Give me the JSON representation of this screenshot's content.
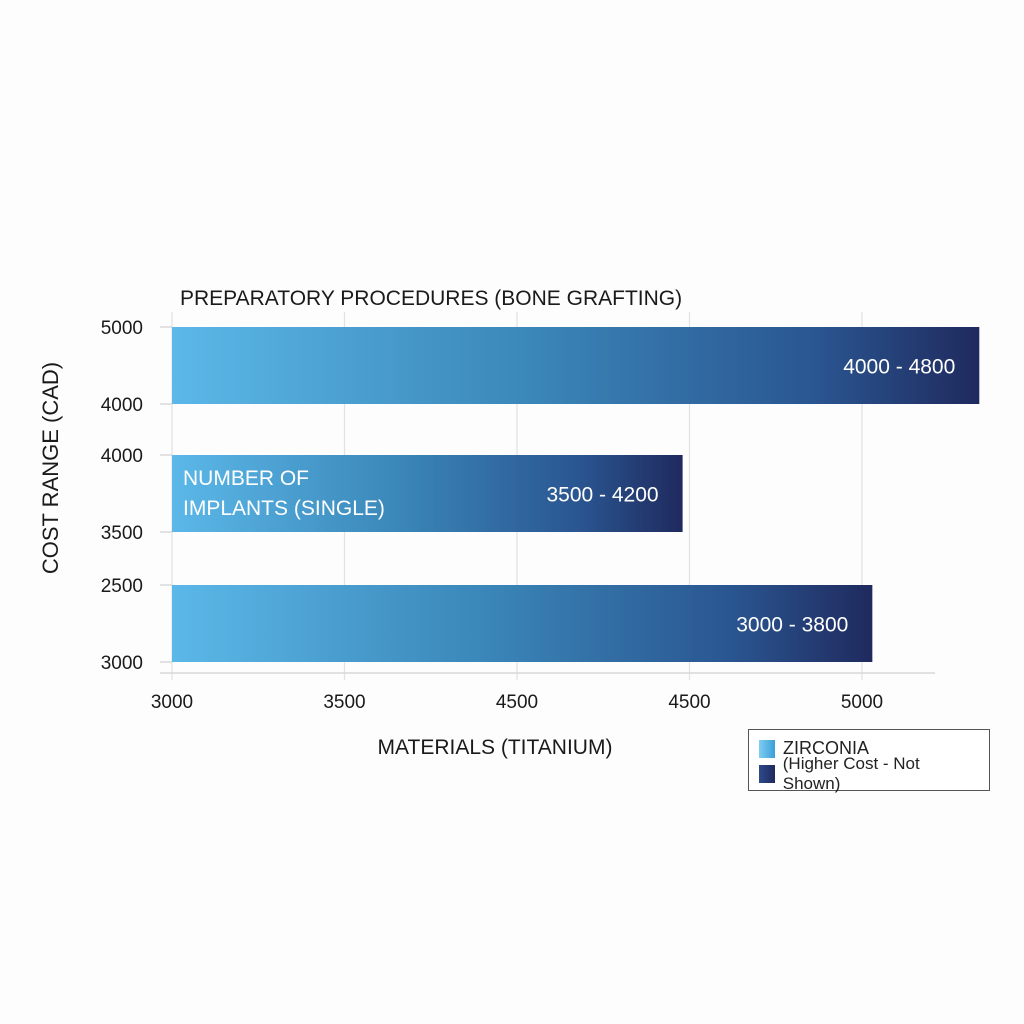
{
  "chart_data": {
    "type": "bar",
    "orientation": "horizontal",
    "title": "PREPARATORY PROCEDURES (BONE GRAFTING)",
    "xlabel": "MATERIALS (TITANIUM)",
    "ylabel": "COST RANGE (CAD)",
    "x_tick_labels": [
      "3000",
      "3500",
      "4500",
      "4500",
      "5000"
    ],
    "xlim": [
      3000,
      5000
    ],
    "grid": "vertical",
    "bars": [
      {
        "x_start": 3000,
        "x_end": 5340,
        "label": "4000 - 4800",
        "inner_text": "",
        "y_tick_top": "5000",
        "y_tick_bottom": "4000"
      },
      {
        "x_start": 3000,
        "x_end": 4480,
        "label": "3500 - 4200",
        "inner_text": "NUMBER OF\nIMPLANTS (SINGLE)",
        "inner_lines": [
          "NUMBER OF",
          "IMPLANTS (SINGLE)"
        ],
        "y_tick_top": "4000",
        "y_tick_bottom": "3500"
      },
      {
        "x_start": 3000,
        "x_end": 5030,
        "label": "3000 - 3800",
        "inner_text": "",
        "y_tick_top": "2500",
        "y_tick_bottom": "3000"
      }
    ],
    "legend": {
      "placement": "bottom-right",
      "entries": [
        {
          "name": "ZIRCONIA",
          "color": "#5bb8e8"
        },
        {
          "name": "(Higher Cost - Not Shown)",
          "color": "#1f2d63"
        }
      ]
    },
    "colors": {
      "gradient_start": "#5bb8e8",
      "gradient_mid": "#3a86b8",
      "gradient_end": "#1f2a5e",
      "grid": "#e2e2e2"
    }
  }
}
